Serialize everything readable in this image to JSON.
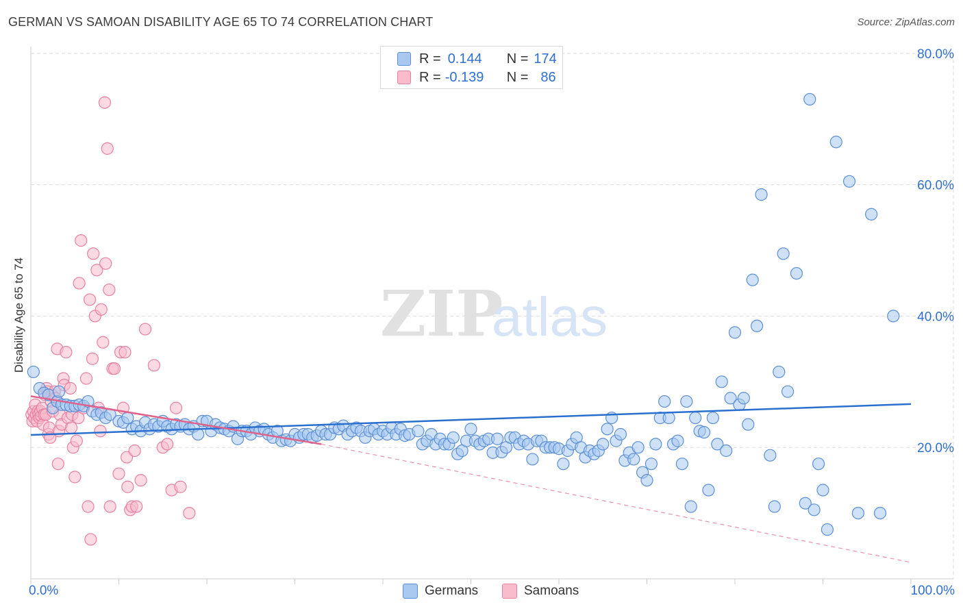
{
  "title": "GERMAN VS SAMOAN DISABILITY AGE 65 TO 74 CORRELATION CHART",
  "source": "Source: ZipAtlas.com",
  "watermark": {
    "zip": "ZIP",
    "atlas": "atlas"
  },
  "legend_top": {
    "rows": [
      {
        "r_label": "R =",
        "r_value": "0.144",
        "n_label": "N =",
        "n_value": "174"
      },
      {
        "r_label": "R =",
        "r_value": "-0.139",
        "n_label": "N =",
        "n_value": "86"
      }
    ]
  },
  "legend_bottom": {
    "series1": "Germans",
    "series2": "Samoans"
  },
  "colors": {
    "german_fill": "#a8c8f0",
    "german_stroke": "#5b8fd6",
    "german_line": "#2a6fce",
    "samoan_fill": "#f8bccd",
    "samoan_stroke": "#e8819f",
    "samoan_line": "#e0628a",
    "tick_label": "#2f6fd0",
    "grid": "#dddddd"
  },
  "chart_data": {
    "type": "scatter",
    "title": "GERMAN VS SAMOAN DISABILITY AGE 65 TO 74 CORRELATION CHART",
    "xlabel": "",
    "ylabel": "Disability Age 65 to 74",
    "xlim": [
      0,
      100
    ],
    "ylim": [
      0,
      80
    ],
    "x_tick_labels": [
      "0.0%",
      "100.0%"
    ],
    "y_ticks": [
      20,
      40,
      60,
      80
    ],
    "y_tick_labels": [
      "20.0%",
      "40.0%",
      "60.0%",
      "80.0%"
    ],
    "grid": true,
    "legend_position": "bottom",
    "series": [
      {
        "name": "Germans",
        "r": 0.144,
        "n": 174,
        "trend": {
          "x": [
            0,
            100
          ],
          "y": [
            21.9,
            26.6
          ]
        },
        "points": [
          [
            0.3,
            31.5
          ],
          [
            1,
            29
          ],
          [
            1.5,
            28.3
          ],
          [
            2,
            28
          ],
          [
            2.5,
            26
          ],
          [
            3,
            27
          ],
          [
            3.2,
            28.5
          ],
          [
            3.5,
            26.5
          ],
          [
            4,
            26.5
          ],
          [
            4.5,
            26.3
          ],
          [
            5,
            26.3
          ],
          [
            5.5,
            26.5
          ],
          [
            6,
            26.3
          ],
          [
            6.5,
            27
          ],
          [
            7,
            25.5
          ],
          [
            7.5,
            25
          ],
          [
            8,
            25.3
          ],
          [
            8.5,
            24.5
          ],
          [
            9,
            25
          ],
          [
            10,
            24
          ],
          [
            10.5,
            23.8
          ],
          [
            11,
            24.5
          ],
          [
            11.5,
            22.8
          ],
          [
            12,
            23.2
          ],
          [
            12.5,
            22.5
          ],
          [
            13,
            23.8
          ],
          [
            13.5,
            22.8
          ],
          [
            14,
            23.5
          ],
          [
            14.5,
            23.2
          ],
          [
            15,
            24
          ],
          [
            15.5,
            23.2
          ],
          [
            16,
            22.8
          ],
          [
            16.5,
            23.5
          ],
          [
            17,
            23.2
          ],
          [
            17.5,
            23.5
          ],
          [
            18,
            22.8
          ],
          [
            18.5,
            23.2
          ],
          [
            19,
            22
          ],
          [
            19.5,
            24
          ],
          [
            20,
            24
          ],
          [
            20.5,
            22.5
          ],
          [
            21,
            23.5
          ],
          [
            21.5,
            23
          ],
          [
            22,
            22.8
          ],
          [
            22.5,
            22.5
          ],
          [
            23,
            23.2
          ],
          [
            23.5,
            21.3
          ],
          [
            24,
            22.5
          ],
          [
            24.5,
            22.5
          ],
          [
            25,
            22
          ],
          [
            25.5,
            23
          ],
          [
            26,
            22.5
          ],
          [
            26.5,
            22.8
          ],
          [
            27,
            22
          ],
          [
            27.5,
            21.5
          ],
          [
            28,
            22.5
          ],
          [
            28.5,
            21
          ],
          [
            29,
            21.2
          ],
          [
            29.5,
            21
          ],
          [
            30,
            22
          ],
          [
            30.5,
            21.5
          ],
          [
            31,
            22
          ],
          [
            31.5,
            22
          ],
          [
            32,
            21.5
          ],
          [
            32.5,
            21.8
          ],
          [
            33,
            22.5
          ],
          [
            33.5,
            22
          ],
          [
            34,
            22
          ],
          [
            34.5,
            23
          ],
          [
            35,
            22.8
          ],
          [
            35.5,
            23.3
          ],
          [
            36,
            22
          ],
          [
            36.5,
            22.5
          ],
          [
            37,
            23
          ],
          [
            37.5,
            22.5
          ],
          [
            38,
            21.5
          ],
          [
            38.5,
            22.5
          ],
          [
            39,
            22.8
          ],
          [
            39.5,
            22
          ],
          [
            40,
            22.5
          ],
          [
            40.5,
            22
          ],
          [
            41,
            23
          ],
          [
            41.5,
            22
          ],
          [
            42,
            22.8
          ],
          [
            42.5,
            21.8
          ],
          [
            43,
            22
          ],
          [
            44,
            22.5
          ],
          [
            44.5,
            20.5
          ],
          [
            45,
            21
          ],
          [
            45.5,
            22
          ],
          [
            46,
            20.5
          ],
          [
            46.5,
            21.3
          ],
          [
            47,
            20.5
          ],
          [
            47.5,
            20.5
          ],
          [
            48,
            21.5
          ],
          [
            48.5,
            19
          ],
          [
            49,
            19.5
          ],
          [
            49.5,
            21
          ],
          [
            50,
            22.8
          ],
          [
            50.5,
            21
          ],
          [
            51,
            20.5
          ],
          [
            51.5,
            21
          ],
          [
            52,
            21.3
          ],
          [
            52.5,
            19.2
          ],
          [
            53,
            21.3
          ],
          [
            53.5,
            19.3
          ],
          [
            54,
            20
          ],
          [
            54.5,
            21.5
          ],
          [
            55,
            21.5
          ],
          [
            55.5,
            20.5
          ],
          [
            56,
            21
          ],
          [
            56.5,
            20.5
          ],
          [
            57,
            18.2
          ],
          [
            57.5,
            21
          ],
          [
            58,
            21
          ],
          [
            58.5,
            20
          ],
          [
            59,
            20
          ],
          [
            59.5,
            20
          ],
          [
            60,
            19.8
          ],
          [
            60.5,
            17.5
          ],
          [
            61,
            19.5
          ],
          [
            61.5,
            20.5
          ],
          [
            62,
            21.5
          ],
          [
            62.5,
            20
          ],
          [
            63,
            18.5
          ],
          [
            63.5,
            19.5
          ],
          [
            64,
            19
          ],
          [
            64.5,
            19.5
          ],
          [
            65,
            20.5
          ],
          [
            65.5,
            22.8
          ],
          [
            66,
            24.5
          ],
          [
            66.5,
            21
          ],
          [
            67,
            22
          ],
          [
            67.5,
            18
          ],
          [
            68,
            19.2
          ],
          [
            68.5,
            18.2
          ],
          [
            69,
            20
          ],
          [
            69.5,
            16.2
          ],
          [
            70,
            15
          ],
          [
            70.5,
            17.5
          ],
          [
            71,
            20.5
          ],
          [
            71.5,
            24.5
          ],
          [
            72,
            27
          ],
          [
            72.5,
            24.5
          ],
          [
            73,
            20.5
          ],
          [
            73.5,
            21
          ],
          [
            74,
            17.5
          ],
          [
            74.5,
            27
          ],
          [
            75,
            11
          ],
          [
            75.5,
            24.5
          ],
          [
            76,
            22.5
          ],
          [
            76.5,
            22.3
          ],
          [
            77,
            13.5
          ],
          [
            77.5,
            24.5
          ],
          [
            78,
            20.5
          ],
          [
            78.5,
            30
          ],
          [
            79,
            19.5
          ],
          [
            79.5,
            27.5
          ],
          [
            80,
            37.5
          ],
          [
            80.5,
            26.5
          ],
          [
            81,
            27.5
          ],
          [
            81.5,
            23.5
          ],
          [
            82,
            45.5
          ],
          [
            82.5,
            38.5
          ],
          [
            83,
            58.5
          ],
          [
            84,
            18.8
          ],
          [
            84.5,
            11
          ],
          [
            85,
            31.5
          ],
          [
            85.5,
            49.5
          ],
          [
            86,
            28.5
          ],
          [
            87,
            46.5
          ],
          [
            88,
            11.5
          ],
          [
            88.5,
            73
          ],
          [
            89,
            10.5
          ],
          [
            89.5,
            17.5
          ],
          [
            90,
            13.5
          ],
          [
            90.5,
            7.5
          ],
          [
            91.5,
            66.5
          ],
          [
            93,
            60.5
          ],
          [
            94,
            10
          ],
          [
            95.5,
            55.5
          ],
          [
            96.5,
            10
          ],
          [
            98,
            40
          ]
        ]
      },
      {
        "name": "Samoans",
        "r": -0.139,
        "n": 86,
        "trend": {
          "x": [
            0,
            33,
            100
          ],
          "y": [
            27.8,
            20.5,
            2.5
          ],
          "solid_until_x": 33
        },
        "points": [
          [
            0.1,
            25
          ],
          [
            0.2,
            24
          ],
          [
            0.3,
            25.5
          ],
          [
            0.4,
            24.5
          ],
          [
            0.5,
            26.5
          ],
          [
            0.6,
            25
          ],
          [
            0.7,
            24
          ],
          [
            0.8,
            25.5
          ],
          [
            0.9,
            25
          ],
          [
            1,
            24.5
          ],
          [
            1.1,
            25.5
          ],
          [
            1.2,
            24.8
          ],
          [
            1.3,
            26
          ],
          [
            1.4,
            23.5
          ],
          [
            1.5,
            25
          ],
          [
            1.6,
            28
          ],
          [
            1.7,
            25
          ],
          [
            1.8,
            29
          ],
          [
            1.9,
            28.5
          ],
          [
            2,
            22
          ],
          [
            2.1,
            23
          ],
          [
            2.2,
            21.5
          ],
          [
            2.3,
            27
          ],
          [
            2.4,
            28
          ],
          [
            2.5,
            25.5
          ],
          [
            2.7,
            28.5
          ],
          [
            2.8,
            27.5
          ],
          [
            3,
            35
          ],
          [
            3.1,
            17.5
          ],
          [
            3.2,
            22.5
          ],
          [
            3.3,
            25
          ],
          [
            3.5,
            23.5
          ],
          [
            3.7,
            30.5
          ],
          [
            3.8,
            29.5
          ],
          [
            4,
            34.5
          ],
          [
            4.2,
            24.5
          ],
          [
            4.5,
            29
          ],
          [
            4.6,
            23
          ],
          [
            4.7,
            25
          ],
          [
            4.8,
            20
          ],
          [
            5,
            15.5
          ],
          [
            5.2,
            21
          ],
          [
            5.4,
            24.5
          ],
          [
            5.5,
            45
          ],
          [
            5.7,
            51.5
          ],
          [
            6,
            26
          ],
          [
            6.3,
            30.5
          ],
          [
            6.5,
            11
          ],
          [
            6.7,
            42.5
          ],
          [
            6.8,
            6
          ],
          [
            7,
            33.5
          ],
          [
            7.1,
            49.5
          ],
          [
            7.3,
            40
          ],
          [
            7.5,
            47
          ],
          [
            7.7,
            26
          ],
          [
            7.9,
            22.5
          ],
          [
            8,
            41
          ],
          [
            8.2,
            36
          ],
          [
            8.4,
            72.5
          ],
          [
            8.5,
            48
          ],
          [
            8.7,
            65.5
          ],
          [
            8.9,
            44
          ],
          [
            9,
            11
          ],
          [
            9.3,
            32
          ],
          [
            9.5,
            32
          ],
          [
            10,
            16
          ],
          [
            10.2,
            34.5
          ],
          [
            10.5,
            26
          ],
          [
            10.7,
            34.5
          ],
          [
            10.9,
            18.5
          ],
          [
            11,
            14
          ],
          [
            11.3,
            10.5
          ],
          [
            11.5,
            11
          ],
          [
            11.8,
            19.5
          ],
          [
            12,
            11
          ],
          [
            12.5,
            15
          ],
          [
            13,
            38
          ],
          [
            14,
            32.5
          ],
          [
            15,
            20
          ],
          [
            15.5,
            20.5
          ],
          [
            16,
            13.5
          ],
          [
            16.5,
            26
          ],
          [
            17,
            14
          ],
          [
            18,
            10
          ]
        ]
      }
    ]
  }
}
